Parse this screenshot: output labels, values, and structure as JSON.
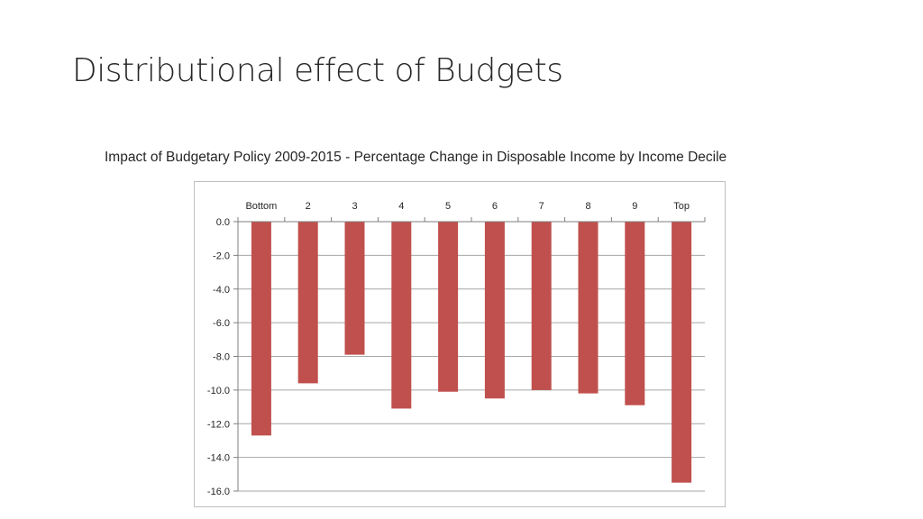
{
  "slide": {
    "title": "Distributional effect of Budgets"
  },
  "chart_data": {
    "type": "bar",
    "title": "Impact of Budgetary Policy 2009-2015 - Percentage Change in Disposable Income by Income Decile",
    "categories": [
      "Bottom",
      "2",
      "3",
      "4",
      "5",
      "6",
      "7",
      "8",
      "9",
      "Top"
    ],
    "values": [
      -12.7,
      -9.6,
      -7.9,
      -11.1,
      -10.1,
      -10.5,
      -10.0,
      -10.2,
      -10.9,
      -15.5
    ],
    "ylim": [
      -16.0,
      0.0
    ],
    "yticks": [
      0,
      -2,
      -4,
      -6,
      -8,
      -10,
      -12,
      -14,
      -16
    ],
    "ytick_labels": [
      "0.0",
      "-2.0",
      "-4.0",
      "-6.0",
      "-8.0",
      "-10.0",
      "-12.0",
      "-14.0",
      "-16.0"
    ],
    "xlabel": "",
    "ylabel": "",
    "category_axis_position": "top",
    "grid": true,
    "legend": "none",
    "bar_color": "#c0504d",
    "grid_color": "#a6a6a6"
  }
}
